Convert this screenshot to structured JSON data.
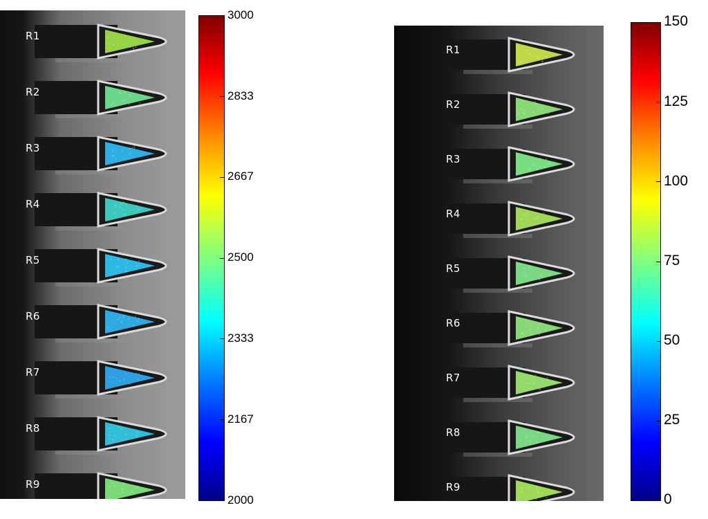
{
  "left_panel": {
    "rows": [
      "R1",
      "R2",
      "R3",
      "R4",
      "R5",
      "R6",
      "R7",
      "R8",
      "R9"
    ],
    "row_colors": [
      "#9fdc4a",
      "#6fe08f",
      "#2fb6ee",
      "#3ed2c5",
      "#2fc1f0",
      "#2fb2ee",
      "#2ea6ee",
      "#35c7e2",
      "#7ee57a"
    ]
  },
  "left_colorbar": {
    "ticks": [
      "3000",
      "2833",
      "2667",
      "2500",
      "2333",
      "2167",
      "2000"
    ],
    "min": 2000,
    "max": 3000
  },
  "right_panel": {
    "rows": [
      "R1",
      "R2",
      "R3",
      "R4",
      "R5",
      "R6",
      "R7",
      "R8",
      "R9"
    ],
    "row_colors": [
      "#c8e34a",
      "#8ee37a",
      "#7fe787",
      "#a9e25a",
      "#7fe38a",
      "#8fe37c",
      "#9be56f",
      "#7fe38a",
      "#a8e45c"
    ]
  },
  "right_colorbar": {
    "ticks": [
      "150",
      "125",
      "100",
      "75",
      "50",
      "25",
      "0"
    ],
    "min": 0,
    "max": 150
  }
}
